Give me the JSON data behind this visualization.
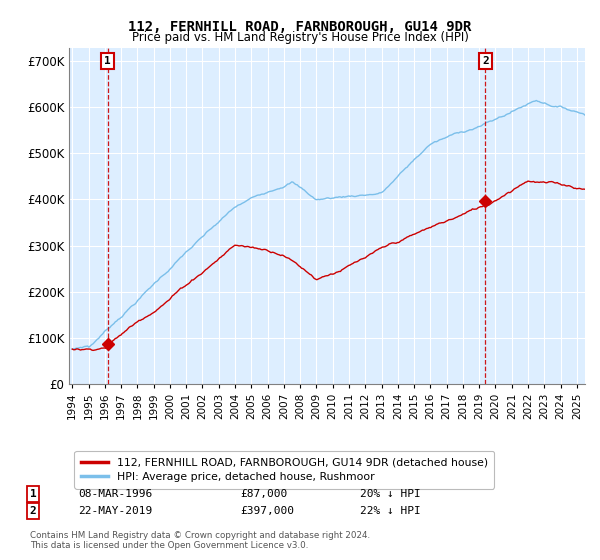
{
  "title": "112, FERNHILL ROAD, FARNBOROUGH, GU14 9DR",
  "subtitle": "Price paid vs. HM Land Registry's House Price Index (HPI)",
  "legend_line1": "112, FERNHILL ROAD, FARNBOROUGH, GU14 9DR (detached house)",
  "legend_line2": "HPI: Average price, detached house, Rushmoor",
  "annotation1_date": "08-MAR-1996",
  "annotation1_price": "£87,000",
  "annotation1_hpi": "20% ↓ HPI",
  "annotation2_date": "22-MAY-2019",
  "annotation2_price": "£397,000",
  "annotation2_hpi": "22% ↓ HPI",
  "footnote": "Contains HM Land Registry data © Crown copyright and database right 2024.\nThis data is licensed under the Open Government Licence v3.0.",
  "hpi_color": "#7bbfea",
  "price_color": "#cc0000",
  "bg_color": "#ddeeff",
  "point1_x": 1996.17,
  "point1_y": 87000,
  "point2_x": 2019.38,
  "point2_y": 397000,
  "ylim": [
    0,
    730000
  ],
  "xlim_start": 1993.8,
  "xlim_end": 2025.5,
  "yticks": [
    0,
    100000,
    200000,
    300000,
    400000,
    500000,
    600000,
    700000
  ]
}
